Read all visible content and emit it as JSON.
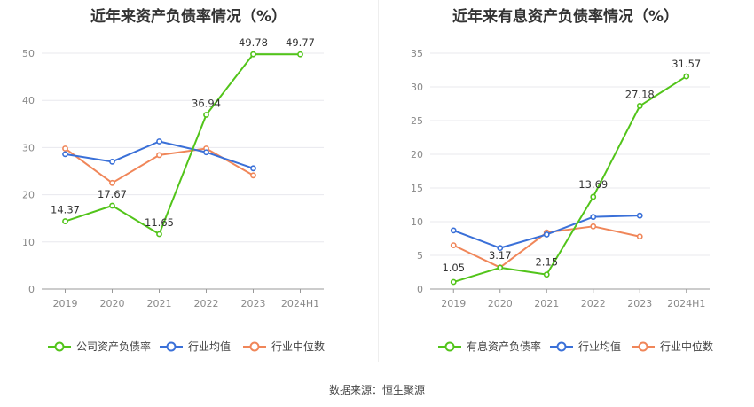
{
  "footer": {
    "source_label": "数据来源：",
    "source_value": "恒生聚源"
  },
  "colors": {
    "company": "#52c41a",
    "avg": "#3a70d8",
    "median": "#f08659",
    "grid": "#e8e8ee",
    "axis": "#888888"
  },
  "chart_data": [
    {
      "type": "line",
      "title": "近年来资产负债率情况（%）",
      "categories": [
        "2019",
        "2020",
        "2021",
        "2022",
        "2023",
        "2024H1"
      ],
      "ylim": [
        0,
        50
      ],
      "yticks": [
        0,
        10,
        20,
        30,
        40,
        50
      ],
      "grid": true,
      "legend_position": "bottom",
      "series": [
        {
          "name": "公司资产负债率",
          "color": "#52c41a",
          "values": [
            14.37,
            17.67,
            11.65,
            36.94,
            49.78,
            49.77
          ],
          "labels": [
            "14.37",
            "17.67",
            "11.65",
            "36.94",
            "49.78",
            "49.77"
          ]
        },
        {
          "name": "行业均值",
          "color": "#3a70d8",
          "values": [
            28.6,
            27.0,
            31.3,
            29.0,
            25.6,
            null
          ]
        },
        {
          "name": "行业中位数",
          "color": "#f08659",
          "values": [
            29.8,
            22.5,
            28.4,
            29.8,
            24.1,
            null
          ]
        }
      ]
    },
    {
      "type": "line",
      "title": "近年来有息资产负债率情况（%）",
      "categories": [
        "2019",
        "2020",
        "2021",
        "2022",
        "2023",
        "2024H1"
      ],
      "ylim": [
        0,
        35
      ],
      "yticks": [
        0,
        5,
        10,
        15,
        20,
        25,
        30,
        35
      ],
      "grid": true,
      "legend_position": "bottom",
      "series": [
        {
          "name": "有息资产负债率",
          "color": "#52c41a",
          "values": [
            1.05,
            3.17,
            2.15,
            13.69,
            27.18,
            31.57
          ],
          "labels": [
            "1.05",
            "3.17",
            "2.15",
            "13.69",
            "27.18",
            "31.57"
          ]
        },
        {
          "name": "行业均值",
          "color": "#3a70d8",
          "values": [
            8.7,
            6.1,
            8.1,
            10.7,
            10.9,
            null
          ]
        },
        {
          "name": "行业中位数",
          "color": "#f08659",
          "values": [
            6.5,
            3.2,
            8.4,
            9.3,
            7.8,
            null
          ]
        }
      ]
    }
  ]
}
